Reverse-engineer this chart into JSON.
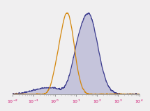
{
  "background_color": "#f0eff0",
  "xlim_log": [
    -2,
    4
  ],
  "ylim": [
    0,
    1.08
  ],
  "sc_color": "#d4860a",
  "sirna_color": "#3d3d8f",
  "sirna_fill_color": "#8080bb",
  "sirna_fill_alpha": 0.38,
  "tick_color": "#cc0066",
  "sc_peak_log": 0.6,
  "sc_sigma": 0.32,
  "sirna_peak_log": 1.65,
  "sirna_sigma": 0.45,
  "noise_seed": 7
}
